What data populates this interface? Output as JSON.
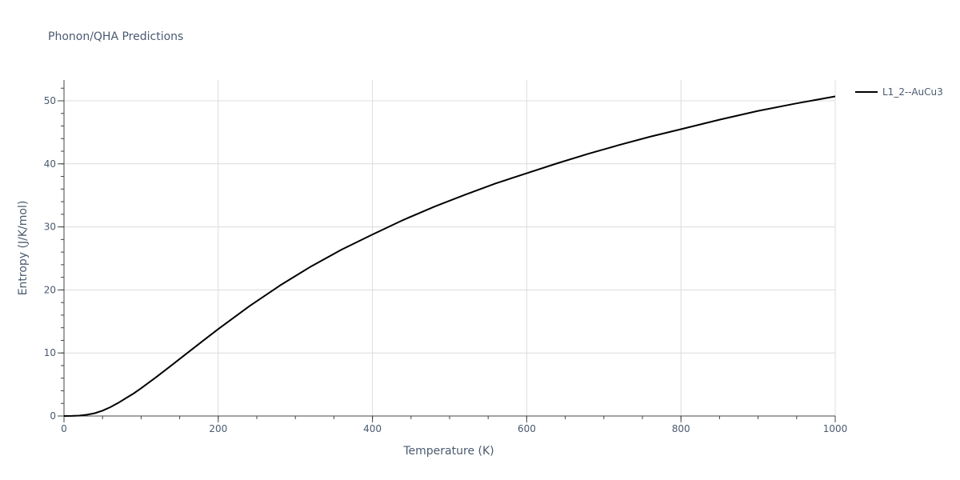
{
  "chart_data": {
    "type": "line",
    "title": "Phonon/QHA Predictions",
    "xlabel": "Temperature (K)",
    "ylabel": "Entropy (J/K/mol)",
    "xlim": [
      0,
      1000
    ],
    "ylim": [
      0,
      53.3
    ],
    "x_ticks": [
      0,
      200,
      400,
      600,
      800,
      1000
    ],
    "y_ticks": [
      0,
      10,
      20,
      30,
      40,
      50
    ],
    "x_minor_step": 50,
    "y_minor_step": 2,
    "grid": true,
    "legend_position": "top-right, outside plot",
    "series": [
      {
        "name": "L1_2--AuCu3",
        "color": "#000000",
        "x": [
          0,
          10,
          20,
          30,
          40,
          50,
          60,
          70,
          80,
          90,
          100,
          120,
          140,
          160,
          180,
          200,
          240,
          280,
          320,
          360,
          400,
          440,
          480,
          520,
          560,
          600,
          640,
          680,
          720,
          760,
          800,
          850,
          900,
          950,
          1000
        ],
        "y": [
          0,
          0.01,
          0.06,
          0.2,
          0.45,
          0.85,
          1.4,
          2.05,
          2.8,
          3.55,
          4.4,
          6.2,
          8.1,
          10.0,
          11.9,
          13.8,
          17.4,
          20.7,
          23.7,
          26.4,
          28.8,
          31.1,
          33.2,
          35.1,
          36.9,
          38.5,
          40.1,
          41.6,
          43.0,
          44.3,
          45.5,
          47.0,
          48.4,
          49.6,
          50.7
        ]
      }
    ]
  }
}
